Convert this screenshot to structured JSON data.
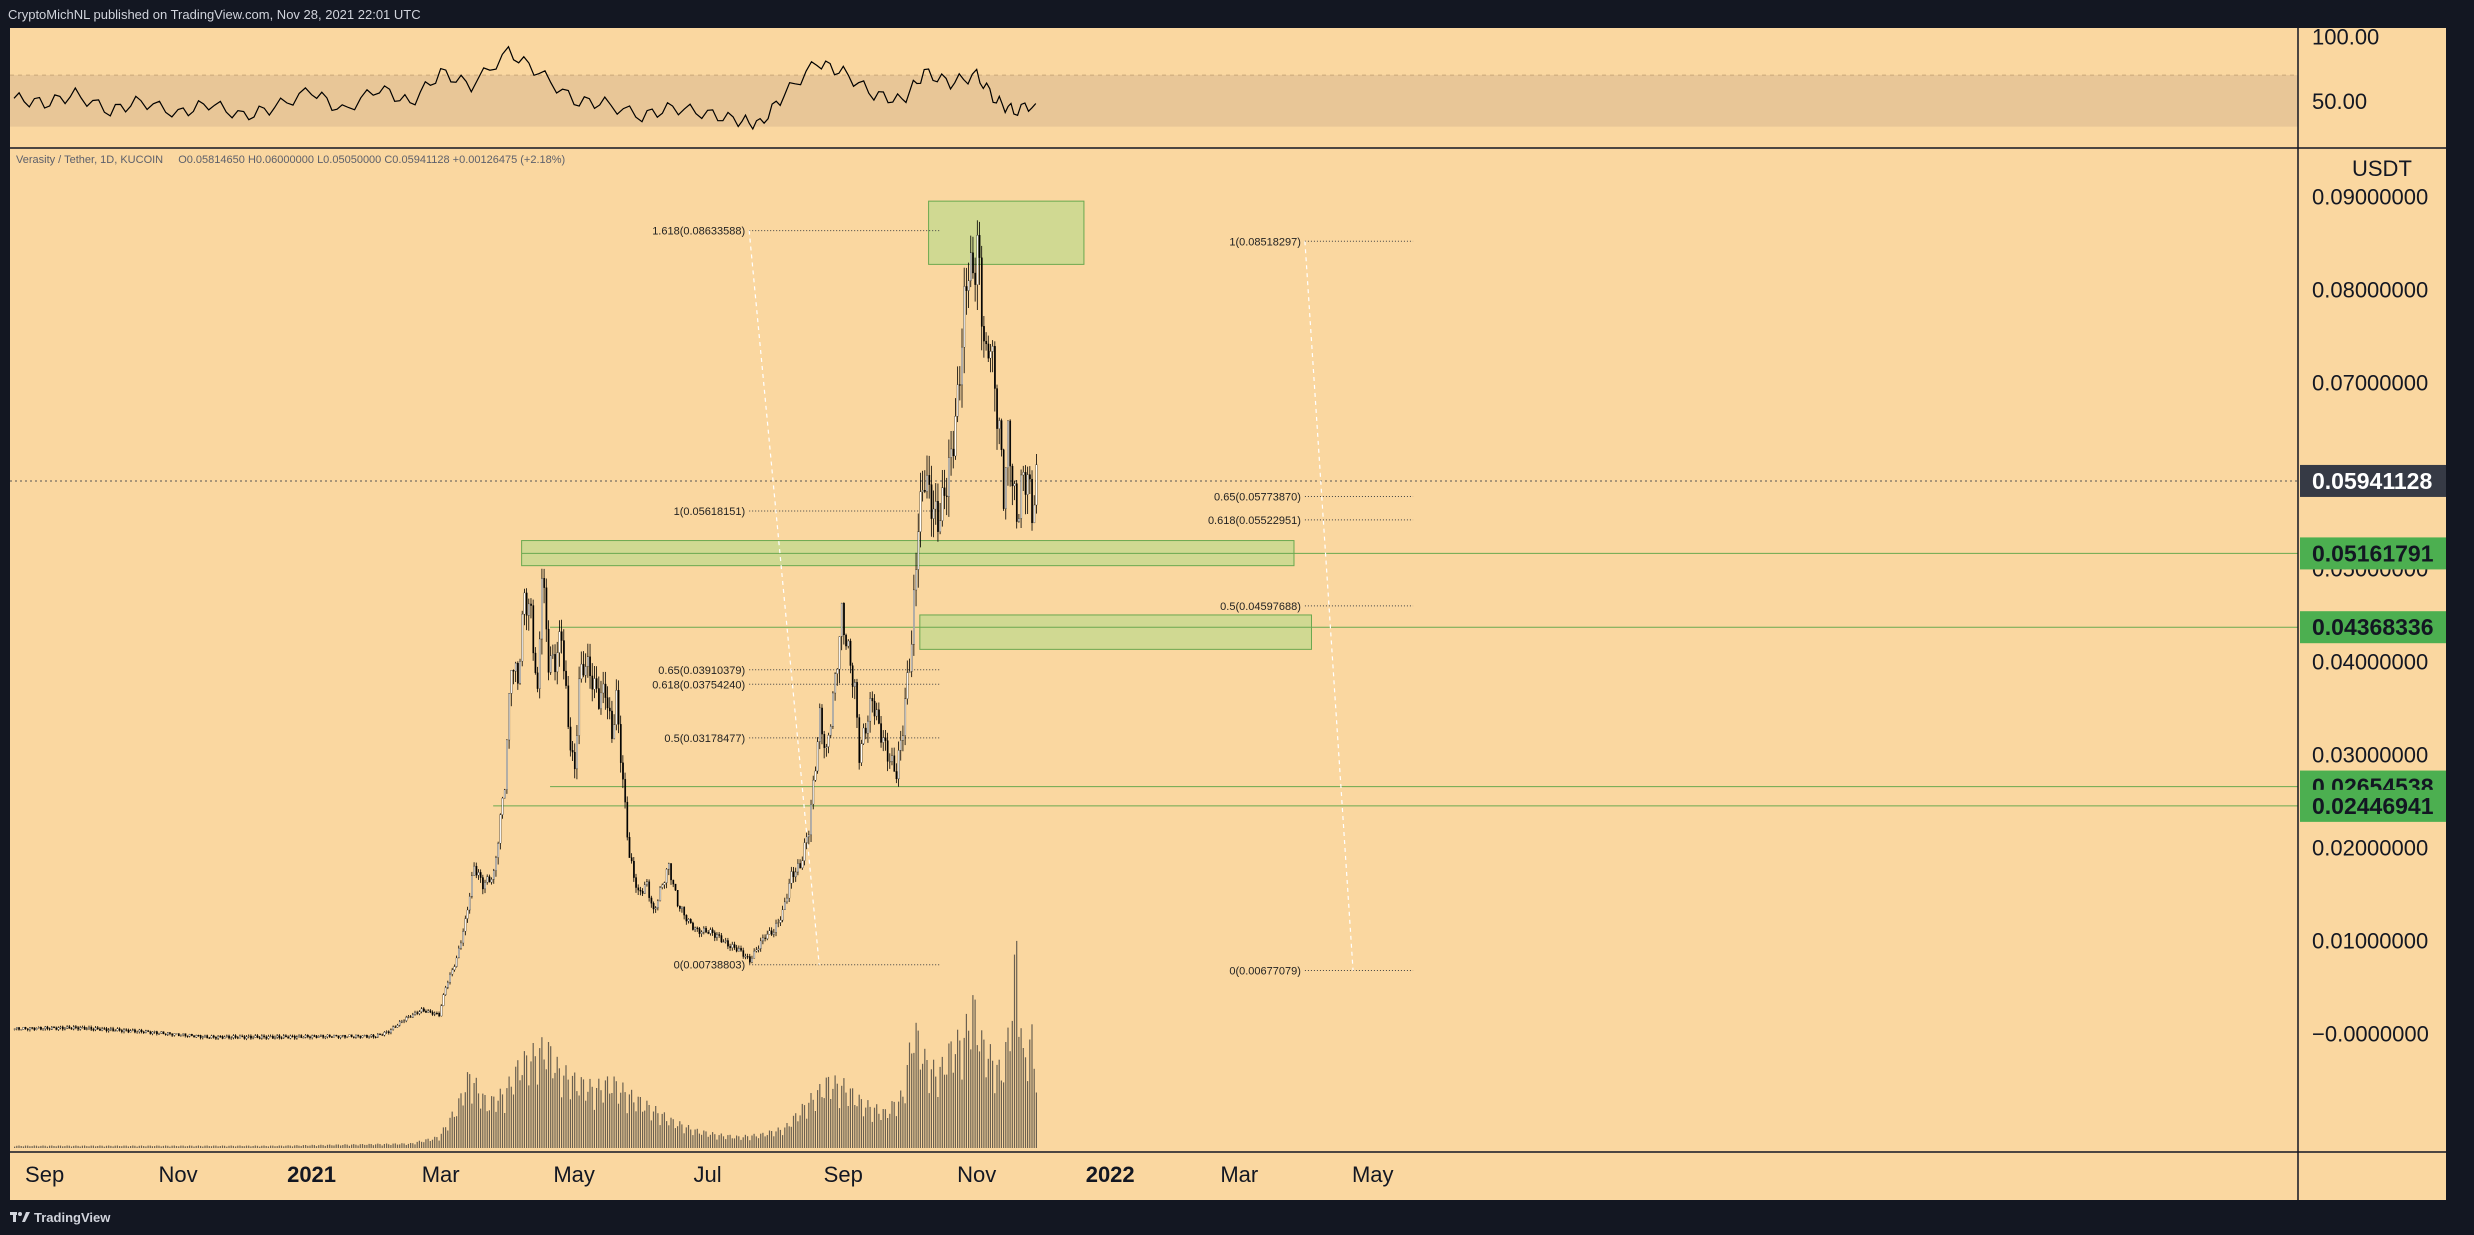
{
  "header": {
    "published_text": "CryptoMichNL published on TradingView.com, Nov 28, 2021 22:01 UTC"
  },
  "footer": {
    "logo_text": "TradingView",
    "logo_icon": "tradingview-logo-icon"
  },
  "symbol_info": {
    "pair": "Verasity / Tether, 1D, KUCOIN",
    "open": "O0.05814650",
    "high": "H0.06000000",
    "low": "L0.05050000",
    "close": "C0.05941128",
    "change": "+0.00126475 (+2.18%)"
  },
  "colors": {
    "background": "#fad7a0",
    "frame": "#131722",
    "candle_up": "#ffffff",
    "candle_down": "#000000",
    "zone_fill": "#c8d98f",
    "zone_border": "#6aa84f",
    "badge_green": "#4caf50",
    "badge_dark": "#363a45",
    "rsi_band": "#e8c697",
    "volume": "#6b6050"
  },
  "chart_data": [
    {
      "type": "candlestick",
      "title": "",
      "y_axis_unit": "USDT",
      "ylim": [
        -0.012,
        0.095
      ],
      "x_ticks": [
        "Sep",
        "Nov",
        "2021",
        "Mar",
        "May",
        "Jul",
        "Sep",
        "Nov",
        "2022",
        "Mar",
        "May"
      ],
      "y_ticks": [
        "0.09000000",
        "0.08000000",
        "0.07000000",
        "0.05000000",
        "0.04000000",
        "0.03000000",
        "0.02000000",
        "0.01000000",
        "−0.0000000"
      ],
      "series": [
        {
          "name": "",
          "points": [
            [
              "2020-08-18",
              0.0005
            ],
            [
              "2020-09-15",
              0.0006
            ],
            [
              "2020-10-15",
              0.0002
            ],
            [
              "2020-11-15",
              -0.0004
            ],
            [
              "2020-12-15",
              -0.0004
            ],
            [
              "2021-01-10",
              -0.0003
            ],
            [
              "2021-01-30",
              -0.0003
            ],
            [
              "2021-02-05",
              0.0002
            ],
            [
              "2021-02-12",
              0.0015
            ],
            [
              "2021-02-20",
              0.0025
            ],
            [
              "2021-02-28",
              0.002
            ],
            [
              "2021-03-03",
              0.005
            ],
            [
              "2021-03-08",
              0.008
            ],
            [
              "2021-03-12",
              0.012
            ],
            [
              "2021-03-16",
              0.018
            ],
            [
              "2021-03-20",
              0.016
            ],
            [
              "2021-03-25",
              0.017
            ],
            [
              "2021-03-30",
              0.027
            ],
            [
              "2021-04-02",
              0.04
            ],
            [
              "2021-04-05",
              0.038
            ],
            [
              "2021-04-08",
              0.047
            ],
            [
              "2021-04-11",
              0.045
            ],
            [
              "2021-04-14",
              0.036
            ],
            [
              "2021-04-16",
              0.05
            ],
            [
              "2021-04-19",
              0.04
            ],
            [
              "2021-04-22",
              0.04
            ],
            [
              "2021-04-25",
              0.043
            ],
            [
              "2021-04-28",
              0.033
            ],
            [
              "2021-05-01",
              0.028
            ],
            [
              "2021-05-03",
              0.038
            ],
            [
              "2021-05-06",
              0.04
            ],
            [
              "2021-05-09",
              0.038
            ],
            [
              "2021-05-12",
              0.036
            ],
            [
              "2021-05-15",
              0.037
            ],
            [
              "2021-05-18",
              0.032
            ],
            [
              "2021-05-20",
              0.036
            ],
            [
              "2021-05-23",
              0.027
            ],
            [
              "2021-05-26",
              0.019
            ],
            [
              "2021-05-30",
              0.015
            ],
            [
              "2021-06-03",
              0.016
            ],
            [
              "2021-06-06",
              0.013
            ],
            [
              "2021-06-10",
              0.016
            ],
            [
              "2021-06-13",
              0.018
            ],
            [
              "2021-06-17",
              0.014
            ],
            [
              "2021-06-22",
              0.012
            ],
            [
              "2021-06-26",
              0.011
            ],
            [
              "2021-07-01",
              0.011
            ],
            [
              "2021-07-05",
              0.0105
            ],
            [
              "2021-07-10",
              0.0095
            ],
            [
              "2021-07-15",
              0.009
            ],
            [
              "2021-07-20",
              0.0078
            ],
            [
              "2021-07-23",
              0.009
            ],
            [
              "2021-07-27",
              0.0105
            ],
            [
              "2021-07-31",
              0.011
            ],
            [
              "2021-08-04",
              0.013
            ],
            [
              "2021-08-08",
              0.017
            ],
            [
              "2021-08-12",
              0.018
            ],
            [
              "2021-08-16",
              0.022
            ],
            [
              "2021-08-19",
              0.029
            ],
            [
              "2021-08-21",
              0.034
            ],
            [
              "2021-08-24",
              0.03
            ],
            [
              "2021-08-28",
              0.038
            ],
            [
              "2021-08-31",
              0.045
            ],
            [
              "2021-09-03",
              0.041
            ],
            [
              "2021-09-06",
              0.037
            ],
            [
              "2021-09-08",
              0.03
            ],
            [
              "2021-09-11",
              0.033
            ],
            [
              "2021-09-14",
              0.036
            ],
            [
              "2021-09-17",
              0.033
            ],
            [
              "2021-09-21",
              0.03
            ],
            [
              "2021-09-25",
              0.028
            ],
            [
              "2021-09-28",
              0.033
            ],
            [
              "2021-09-30",
              0.038
            ],
            [
              "2021-10-02",
              0.042
            ],
            [
              "2021-10-05",
              0.055
            ],
            [
              "2021-10-08",
              0.06
            ],
            [
              "2021-10-11",
              0.057
            ],
            [
              "2021-10-14",
              0.055
            ],
            [
              "2021-10-17",
              0.058
            ],
            [
              "2021-10-20",
              0.062
            ],
            [
              "2021-10-23",
              0.068
            ],
            [
              "2021-10-26",
              0.078
            ],
            [
              "2021-10-28",
              0.083
            ],
            [
              "2021-10-30",
              0.081
            ],
            [
              "2021-11-01",
              0.085
            ],
            [
              "2021-11-03",
              0.078
            ],
            [
              "2021-11-05",
              0.072
            ],
            [
              "2021-11-07",
              0.075
            ],
            [
              "2021-11-09",
              0.069
            ],
            [
              "2021-11-11",
              0.065
            ],
            [
              "2021-11-13",
              0.058
            ],
            [
              "2021-11-15",
              0.064
            ],
            [
              "2021-11-17",
              0.06
            ],
            [
              "2021-11-19",
              0.055
            ],
            [
              "2021-11-21",
              0.059
            ],
            [
              "2021-11-24",
              0.06
            ],
            [
              "2021-11-26",
              0.056
            ],
            [
              "2021-11-28",
              0.0594
            ]
          ]
        }
      ],
      "last_price": {
        "label": "0.05941128",
        "value": 0.05941128
      },
      "horizontal_levels": [
        {
          "label": "0.05161791",
          "value": 0.05161791,
          "from": "2021-04-07"
        },
        {
          "label": "0.04368336",
          "value": 0.04368336,
          "from": "2021-04-20"
        },
        {
          "label": "0.02654538",
          "value": 0.02654538,
          "from": "2021-04-20"
        },
        {
          "label": "0.02446941",
          "value": 0.02446941,
          "from": "2021-03-25"
        }
      ],
      "zones": [
        {
          "x": [
            "2021-10-10",
            "2021-12-20"
          ],
          "y": [
            0.0827,
            0.0895
          ]
        },
        {
          "x": [
            "2021-04-07",
            "2022-03-26"
          ],
          "y": [
            0.0503,
            0.053
          ]
        },
        {
          "x": [
            "2021-10-06",
            "2022-04-03"
          ],
          "y": [
            0.0413,
            0.045
          ]
        }
      ],
      "fib_retracements": [
        {
          "x": [
            "2021-07-20",
            "2021-08-21"
          ],
          "levels": [
            {
              "label": "1.618(0.08633588)",
              "value": 0.08633588
            },
            {
              "label": "1(0.05618151)",
              "value": 0.05618151
            },
            {
              "label": "0.65(0.03910379)",
              "value": 0.03910379
            },
            {
              "label": "0.618(0.03754240)",
              "value": 0.0375424
            },
            {
              "label": "0.5(0.03178477)",
              "value": 0.03178477
            },
            {
              "label": "0(0.00738803)",
              "value": 0.00738803
            }
          ]
        },
        {
          "x": [
            "2022-03-31",
            "2022-04-22"
          ],
          "levels": [
            {
              "label": "1(0.08518297)",
              "value": 0.08518297
            },
            {
              "label": "0.65(0.05773870)",
              "value": 0.0577387
            },
            {
              "label": "0.618(0.05522951)",
              "value": 0.05522951
            },
            {
              "label": "0.5(0.04597688)",
              "value": 0.04597688
            },
            {
              "label": "0(0.00677079)",
              "value": 0.00677079
            }
          ]
        }
      ],
      "volume": {
        "values": [
          [
            "2020-08-18",
            0.01
          ],
          [
            "2020-10-15",
            0.01
          ],
          [
            "2020-12-15",
            0.01
          ],
          [
            "2021-02-15",
            0.02
          ],
          [
            "2021-02-28",
            0.05
          ],
          [
            "2021-03-08",
            0.18
          ],
          [
            "2021-03-14",
            0.33
          ],
          [
            "2021-03-22",
            0.2
          ],
          [
            "2021-03-30",
            0.25
          ],
          [
            "2021-04-06",
            0.38
          ],
          [
            "2021-04-12",
            0.42
          ],
          [
            "2021-04-18",
            0.46
          ],
          [
            "2021-04-24",
            0.35
          ],
          [
            "2021-05-02",
            0.3
          ],
          [
            "2021-05-10",
            0.27
          ],
          [
            "2021-05-18",
            0.3
          ],
          [
            "2021-05-26",
            0.24
          ],
          [
            "2021-06-05",
            0.18
          ],
          [
            "2021-06-15",
            0.12
          ],
          [
            "2021-06-25",
            0.08
          ],
          [
            "2021-07-05",
            0.06
          ],
          [
            "2021-07-15",
            0.05
          ],
          [
            "2021-07-25",
            0.06
          ],
          [
            "2021-08-05",
            0.09
          ],
          [
            "2021-08-15",
            0.2
          ],
          [
            "2021-08-25",
            0.3
          ],
          [
            "2021-09-01",
            0.28
          ],
          [
            "2021-09-10",
            0.2
          ],
          [
            "2021-09-20",
            0.16
          ],
          [
            "2021-09-28",
            0.24
          ],
          [
            "2021-10-03",
            0.55
          ],
          [
            "2021-10-08",
            0.4
          ],
          [
            "2021-10-14",
            0.33
          ],
          [
            "2021-10-20",
            0.45
          ],
          [
            "2021-10-26",
            0.5
          ],
          [
            "2021-10-30",
            0.65
          ],
          [
            "2021-11-03",
            0.48
          ],
          [
            "2021-11-08",
            0.4
          ],
          [
            "2021-11-12",
            0.34
          ],
          [
            "2021-11-16",
            0.55
          ],
          [
            "2021-11-19",
            0.9
          ],
          [
            "2021-11-22",
            0.4
          ],
          [
            "2021-11-26",
            0.5
          ],
          [
            "2021-11-28",
            0.32
          ]
        ]
      }
    },
    {
      "type": "line",
      "title": "",
      "ylim": [
        15,
        105
      ],
      "y_ticks": [
        "100.00",
        "50.00"
      ],
      "band": [
        30,
        70
      ],
      "series": [
        {
          "name": "",
          "points": [
            [
              "2020-08-18",
              52
            ],
            [
              "2020-09-01",
              48
            ],
            [
              "2020-09-15",
              55
            ],
            [
              "2020-10-01",
              42
            ],
            [
              "2020-10-15",
              50
            ],
            [
              "2020-11-01",
              40
            ],
            [
              "2020-11-15",
              48
            ],
            [
              "2020-12-01",
              38
            ],
            [
              "2020-12-15",
              45
            ],
            [
              "2021-01-01",
              58
            ],
            [
              "2021-01-15",
              42
            ],
            [
              "2021-02-01",
              60
            ],
            [
              "2021-02-15",
              48
            ],
            [
              "2021-03-01",
              72
            ],
            [
              "2021-03-15",
              62
            ],
            [
              "2021-04-01",
              88
            ],
            [
              "2021-04-15",
              72
            ],
            [
              "2021-05-01",
              50
            ],
            [
              "2021-05-15",
              48
            ],
            [
              "2021-06-01",
              38
            ],
            [
              "2021-06-15",
              45
            ],
            [
              "2021-07-01",
              40
            ],
            [
              "2021-07-15",
              35
            ],
            [
              "2021-07-25",
              32
            ],
            [
              "2021-08-05",
              55
            ],
            [
              "2021-08-20",
              80
            ],
            [
              "2021-09-01",
              72
            ],
            [
              "2021-09-15",
              55
            ],
            [
              "2021-09-28",
              50
            ],
            [
              "2021-10-08",
              72
            ],
            [
              "2021-10-20",
              64
            ],
            [
              "2021-11-01",
              70
            ],
            [
              "2021-11-10",
              50
            ],
            [
              "2021-11-18",
              42
            ],
            [
              "2021-11-28",
              48
            ]
          ]
        }
      ]
    }
  ]
}
